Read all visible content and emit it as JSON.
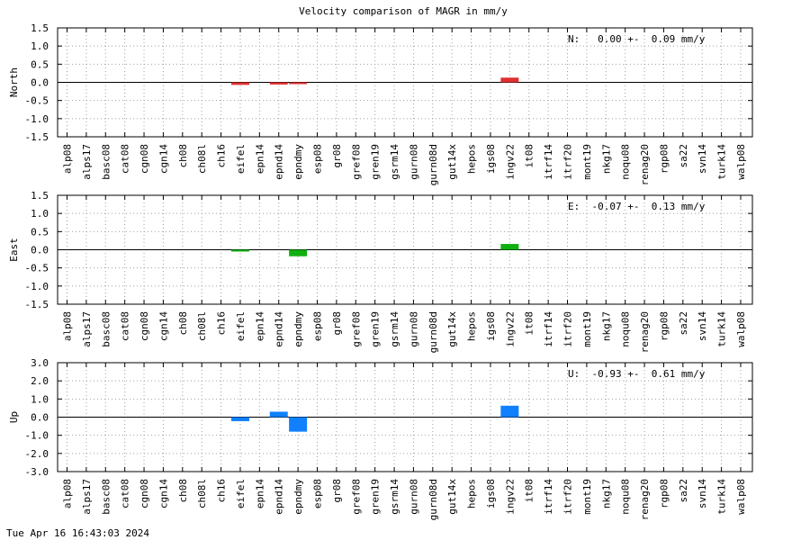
{
  "title": "Velocity comparison of MAGR in mm/y",
  "footer": "Tue Apr 16 16:43:03 2024",
  "chart_data": [
    {
      "type": "bar",
      "ylabel": "North",
      "ylim": [
        -1.5,
        1.5
      ],
      "yticks": [
        -1.5,
        -1.0,
        -0.5,
        0.0,
        0.5,
        1.0,
        1.5
      ],
      "grid": true,
      "color": "#e03030",
      "annotation": "N:   0.00 +-  0.09 mm/y",
      "categories": [
        "alp08",
        "alps17",
        "basc08",
        "cat08",
        "cgn08",
        "cgn14",
        "ch08",
        "ch08l",
        "ch16",
        "eifel",
        "epn14",
        "epnd14",
        "epndmy",
        "esp08",
        "gr08",
        "gref08",
        "gren19",
        "gsrm14",
        "gurn08",
        "gurn08d",
        "gut14x",
        "hepos",
        "igs08",
        "ingv22",
        "it08",
        "itrf14",
        "itrf20",
        "mont19",
        "nkg17",
        "noqu08",
        "renag20",
        "rgp08",
        "sa22",
        "svn14",
        "turk14",
        "walp08"
      ],
      "values": [
        null,
        null,
        null,
        null,
        null,
        null,
        null,
        null,
        null,
        -0.07,
        null,
        -0.06,
        -0.02,
        null,
        null,
        null,
        null,
        null,
        null,
        null,
        null,
        null,
        null,
        0.13,
        null,
        null,
        null,
        null,
        null,
        null,
        null,
        null,
        null,
        null,
        null,
        null
      ]
    },
    {
      "type": "bar",
      "ylabel": "East",
      "ylim": [
        -1.5,
        1.5
      ],
      "yticks": [
        -1.5,
        -1.0,
        -0.5,
        0.0,
        0.5,
        1.0,
        1.5
      ],
      "grid": true,
      "color": "#10b010",
      "annotation": "E:  -0.07 +-  0.13 mm/y",
      "categories": [
        "alp08",
        "alps17",
        "basc08",
        "cat08",
        "cgn08",
        "cgn14",
        "ch08",
        "ch08l",
        "ch16",
        "eifel",
        "epn14",
        "epnd14",
        "epndmy",
        "esp08",
        "gr08",
        "gref08",
        "gren19",
        "gsrm14",
        "gurn08",
        "gurn08d",
        "gut14x",
        "hepos",
        "igs08",
        "ingv22",
        "it08",
        "itrf14",
        "itrf20",
        "mont19",
        "nkg17",
        "noqu08",
        "renag20",
        "rgp08",
        "sa22",
        "svn14",
        "turk14",
        "walp08"
      ],
      "values": [
        null,
        null,
        null,
        null,
        null,
        null,
        null,
        null,
        null,
        -0.02,
        null,
        null,
        -0.18,
        null,
        null,
        null,
        null,
        null,
        null,
        null,
        null,
        null,
        null,
        0.16,
        null,
        null,
        null,
        null,
        null,
        null,
        null,
        null,
        null,
        null,
        null,
        null
      ]
    },
    {
      "type": "bar",
      "ylabel": "Up",
      "ylim": [
        -3.0,
        3.0
      ],
      "yticks": [
        -3.0,
        -2.0,
        -1.0,
        0.0,
        1.0,
        2.0,
        3.0
      ],
      "grid": true,
      "color": "#1080ff",
      "annotation": "U:  -0.93 +-  0.61 mm/y",
      "categories": [
        "alp08",
        "alps17",
        "basc08",
        "cat08",
        "cgn08",
        "cgn14",
        "ch08",
        "ch08l",
        "ch16",
        "eifel",
        "epn14",
        "epnd14",
        "epndmy",
        "esp08",
        "gr08",
        "gref08",
        "gren19",
        "gsrm14",
        "gurn08",
        "gurn08d",
        "gut14x",
        "hepos",
        "igs08",
        "ingv22",
        "it08",
        "itrf14",
        "itrf20",
        "mont19",
        "nkg17",
        "noqu08",
        "renag20",
        "rgp08",
        "sa22",
        "svn14",
        "turk14",
        "walp08"
      ],
      "values": [
        null,
        null,
        null,
        null,
        null,
        null,
        null,
        null,
        null,
        -0.22,
        null,
        0.3,
        -0.8,
        null,
        null,
        null,
        null,
        null,
        null,
        null,
        null,
        null,
        null,
        0.63,
        null,
        null,
        null,
        null,
        null,
        null,
        null,
        null,
        null,
        null,
        null,
        null
      ]
    }
  ]
}
